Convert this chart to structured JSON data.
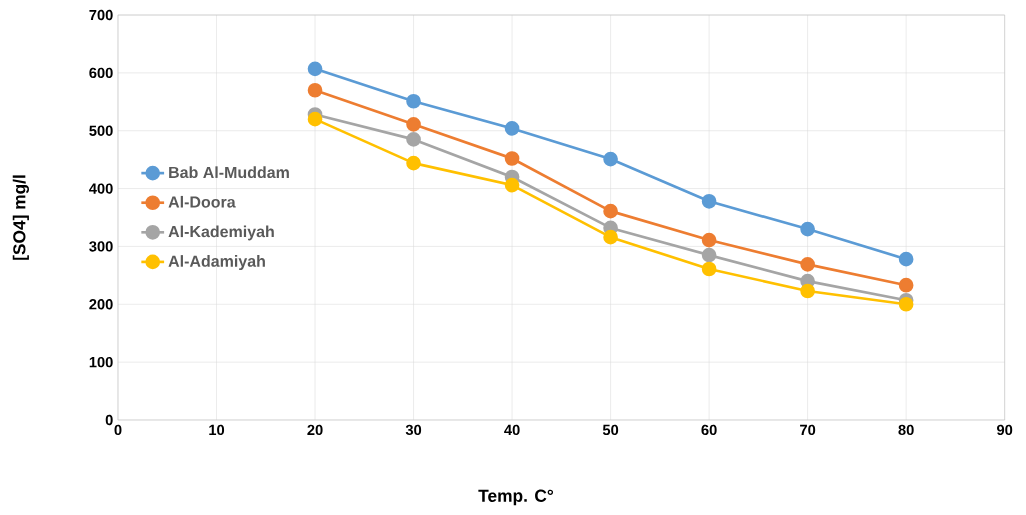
{
  "chart_data": {
    "type": "line",
    "xlabel": "Temp. C°",
    "ylabel": "[SO4] mg/l",
    "x": [
      20,
      30,
      40,
      50,
      60,
      70,
      80
    ],
    "series": [
      {
        "name": "Bab Al-Muddam",
        "color": "#5b9bd5",
        "values": [
          607,
          551,
          504,
          451,
          378,
          330,
          278
        ]
      },
      {
        "name": "Al-Doora",
        "color": "#ed7d31",
        "values": [
          570,
          511,
          452,
          361,
          311,
          269,
          233
        ]
      },
      {
        "name": "Al-Kademiyah",
        "color": "#a5a5a5",
        "values": [
          528,
          485,
          420,
          332,
          285,
          240,
          207
        ]
      },
      {
        "name": "Al-Adamiyah",
        "color": "#ffc000",
        "values": [
          520,
          444,
          406,
          316,
          261,
          223,
          200
        ]
      }
    ],
    "xlim": [
      0,
      90
    ],
    "xticks": [
      0,
      10,
      20,
      30,
      40,
      50,
      60,
      70,
      80,
      90
    ],
    "ylim": [
      0,
      700
    ],
    "yticks": [
      0,
      100,
      200,
      300,
      400,
      500,
      600,
      700
    ],
    "grid": true,
    "legend": "left",
    "marker": "circle",
    "line_style": "solid"
  }
}
